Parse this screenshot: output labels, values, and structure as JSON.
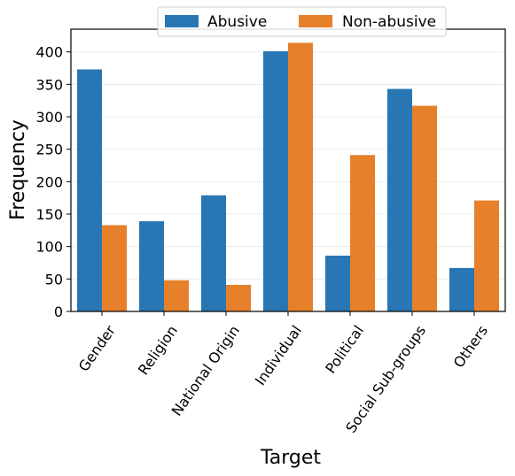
{
  "chart_data": {
    "type": "bar",
    "categories": [
      "Gender",
      "Religion",
      "National Origin",
      "Individual",
      "Political",
      "Social Sub-groups",
      "Others"
    ],
    "series": [
      {
        "name": "Abusive",
        "color": "#2877b4",
        "values": [
          373,
          139,
          179,
          401,
          86,
          343,
          67
        ]
      },
      {
        "name": "Non-abusive",
        "color": "#e6802b",
        "values": [
          133,
          48,
          41,
          414,
          241,
          317,
          171
        ]
      }
    ],
    "xlabel": "Target",
    "ylabel": "Frequency",
    "ylim": [
      0,
      435
    ],
    "yticks": [
      0,
      50,
      100,
      150,
      200,
      250,
      300,
      350,
      400
    ],
    "grid": "horizontal",
    "legend_position": "top-center"
  }
}
